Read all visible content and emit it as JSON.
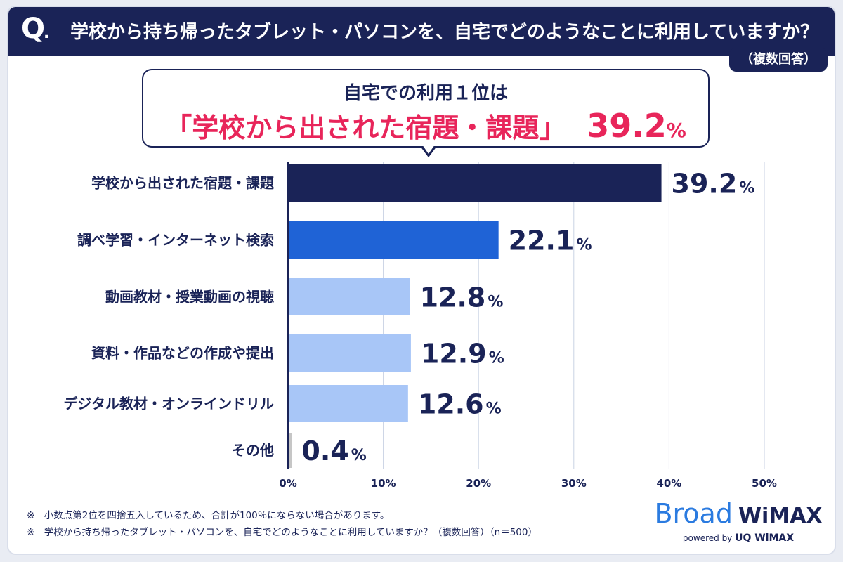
{
  "header": {
    "q_mark": "Q",
    "question": "学校から持ち帰ったタブレット・パソコンを、自宅でどのようなことに利用していますか？",
    "note": "（複数回答）"
  },
  "callout": {
    "line1": "自宅での利用１位は",
    "highlight": "「学校から出された宿題・課題」",
    "value": "39.2",
    "unit": "%"
  },
  "chart_data": {
    "type": "bar",
    "orientation": "horizontal",
    "categories": [
      "学校から出された宿題・課題",
      "調べ学習・インターネット検索",
      "動画教材・授業動画の視聴",
      "資料・作品などの作成や提出",
      "デジタル教材・オンラインドリル",
      "その他"
    ],
    "values": [
      39.2,
      22.1,
      12.8,
      12.9,
      12.6,
      0.4
    ],
    "value_labels": [
      "39.2",
      "22.1",
      "12.8",
      "12.9",
      "12.6",
      "0.4"
    ],
    "value_unit": "%",
    "bar_colors": [
      "#1a2357",
      "#1f63d6",
      "#a8c6f7",
      "#a8c6f7",
      "#a8c6f7",
      "#c6c6c6"
    ],
    "xlim": [
      0,
      50
    ],
    "xticks": [
      "0%",
      "10%",
      "20%",
      "30%",
      "40%",
      "50%"
    ],
    "grid": true,
    "legend": "none"
  },
  "footnotes": [
    "※　小数点第2位を四捨五入しているため、合計が100％にならない場合があります。",
    "※　学校から持ち帰ったタブレット・パソコンを、自宅でどのようなことに利用していますか？（複数回答）（n＝500）"
  ],
  "logo": {
    "broad": "Broad",
    "wimax": "WiMAX",
    "powered_by": "powered by",
    "uq": "UQ WiMAX"
  },
  "colors": {
    "navy": "#1a2357",
    "accent_red": "#e8255a",
    "blue": "#1f63d6",
    "light_blue": "#a8c6f7",
    "gray": "#c6c6c6"
  }
}
